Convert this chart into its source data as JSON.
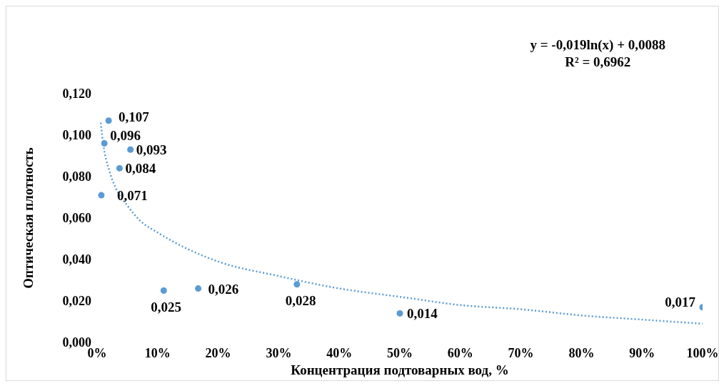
{
  "chart_data": {
    "type": "scatter",
    "xlabel": "Концентрация подтоварных вод, %",
    "ylabel": "Оптическая плотность",
    "annotations": [
      "y = -0,019ln(x) + 0,0088",
      "R² = 0,6962"
    ],
    "series": [
      {
        "color": "#5b9bd5",
        "marker": "circle",
        "x": [
          1.9,
          1.2,
          5.5,
          3.7,
          0.7,
          11,
          16.7,
          33,
          50,
          100
        ],
        "values": [
          0.107,
          0.096,
          0.093,
          0.084,
          0.071,
          0.025,
          0.026,
          0.028,
          0.014,
          0.017
        ],
        "value_labels": [
          "0,107",
          "0,096",
          "0,093",
          "0,084",
          "0,071",
          "0,025",
          "0,026",
          "0,028",
          "0,014",
          "0,017"
        ]
      },
      {
        "type": "line",
        "color": "#5b9bd5",
        "line_style": "dotted",
        "x": [
          0.6,
          1,
          2,
          3,
          5,
          7,
          10,
          15,
          20,
          30,
          40,
          50,
          60,
          70,
          80,
          90,
          100
        ],
        "values": [
          0.106,
          0.096,
          0.083,
          0.075,
          0.066,
          0.059,
          0.053,
          0.045,
          0.039,
          0.032,
          0.026,
          0.022,
          0.018,
          0.016,
          0.013,
          0.011,
          0.009
        ]
      }
    ],
    "xlim": [
      0,
      100
    ],
    "xticks": [
      {
        "value": 0,
        "label": "0%"
      },
      {
        "value": 10,
        "label": "10%"
      },
      {
        "value": 20,
        "label": "20%"
      },
      {
        "value": 30,
        "label": "30%"
      },
      {
        "value": 40,
        "label": "40%"
      },
      {
        "value": 50,
        "label": "50%"
      },
      {
        "value": 60,
        "label": "60%"
      },
      {
        "value": 70,
        "label": "70%"
      },
      {
        "value": 80,
        "label": "80%"
      },
      {
        "value": 90,
        "label": "90%"
      },
      {
        "value": 100,
        "label": "100%"
      }
    ],
    "ylim": [
      0,
      0.12
    ],
    "yticks": [
      {
        "value": 0,
        "label": "0,000"
      },
      {
        "value": 0.02,
        "label": "0,020"
      },
      {
        "value": 0.04,
        "label": "0,040"
      },
      {
        "value": 0.06,
        "label": "0,060"
      },
      {
        "value": 0.08,
        "label": "0,080"
      },
      {
        "value": 0.1,
        "label": "0,100"
      },
      {
        "value": 0.12,
        "label": "0,120"
      }
    ],
    "grid": false,
    "legend": false
  }
}
